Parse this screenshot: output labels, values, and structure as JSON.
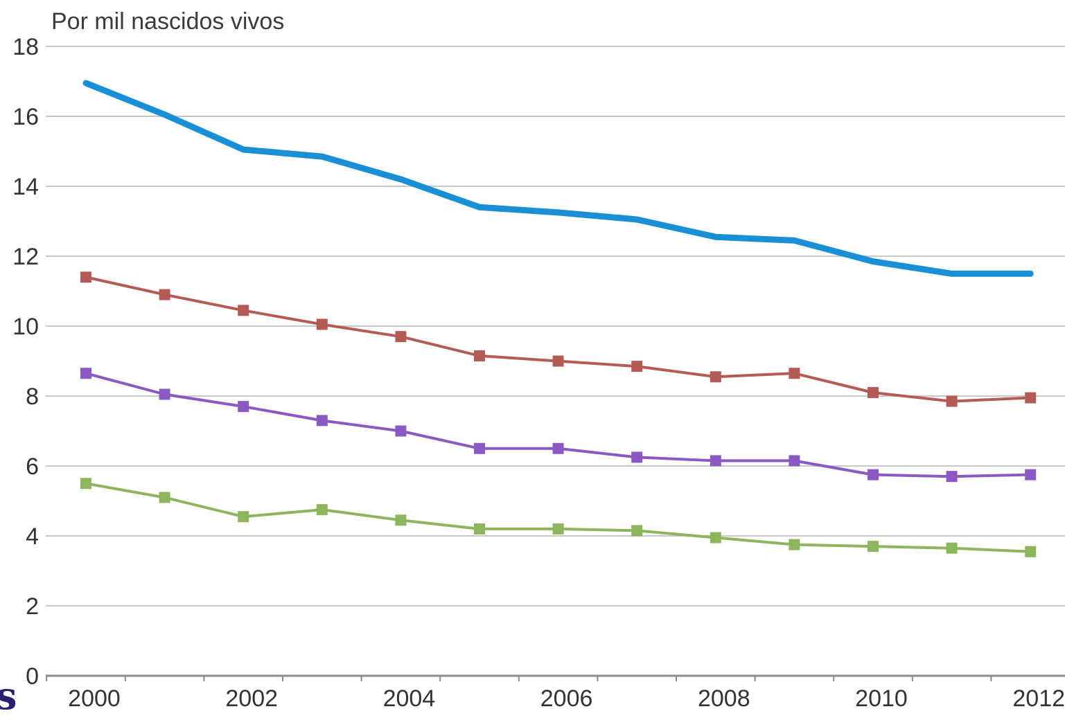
{
  "corner_text": "s",
  "chart_data": {
    "type": "line",
    "title": "",
    "ylabel": "Por mil nascidos vivos",
    "xlabel": "",
    "x": [
      2000,
      2001,
      2002,
      2003,
      2004,
      2005,
      2006,
      2007,
      2008,
      2009,
      2010,
      2011,
      2012
    ],
    "x_tick_labels": [
      "2000",
      "2002",
      "2004",
      "2006",
      "2008",
      "2010",
      "2012"
    ],
    "y_tick_labels": [
      "0",
      "2",
      "4",
      "6",
      "8",
      "10",
      "12",
      "14",
      "16",
      "18"
    ],
    "ylim": [
      0,
      18
    ],
    "grid": true,
    "legend": "none",
    "series": [
      {
        "color": "#1a8fd6",
        "marker": "none",
        "values": [
          16.95,
          16.05,
          15.05,
          14.85,
          14.2,
          13.4,
          13.25,
          13.05,
          12.55,
          12.45,
          11.85,
          11.5,
          11.5
        ]
      },
      {
        "color": "#b55b55",
        "marker": "square",
        "values": [
          11.4,
          10.9,
          10.45,
          10.05,
          9.7,
          9.15,
          9.0,
          8.85,
          8.55,
          8.65,
          8.1,
          7.85,
          7.95
        ]
      },
      {
        "color": "#8a5ac2",
        "marker": "square",
        "values": [
          8.65,
          8.05,
          7.7,
          7.3,
          7.0,
          6.5,
          6.5,
          6.25,
          6.15,
          6.15,
          5.75,
          5.7,
          5.75
        ]
      },
      {
        "color": "#8db55e",
        "marker": "square",
        "values": [
          5.5,
          5.1,
          4.55,
          4.75,
          4.45,
          4.2,
          4.2,
          4.15,
          3.95,
          3.75,
          3.7,
          3.65,
          3.55
        ]
      }
    ]
  }
}
